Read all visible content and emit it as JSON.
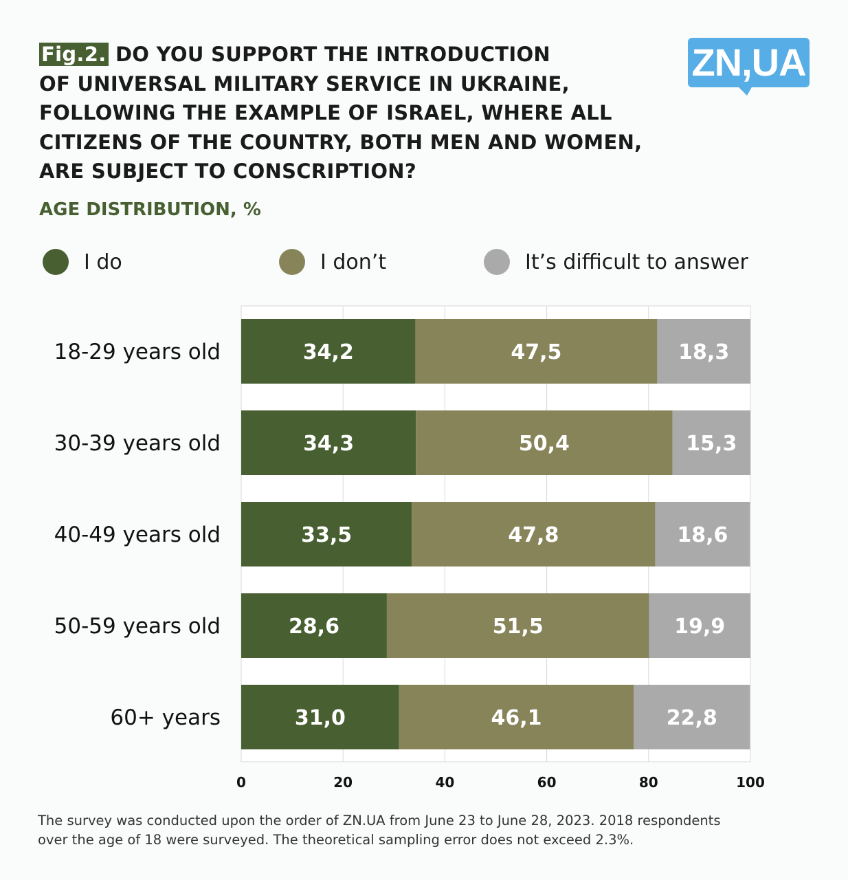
{
  "figure_label": "Fig.2.",
  "logo": "ZN,UA",
  "footnote_lines": [
    "The survey was conducted upon the order of ZN.UA from June 23 to June 28, 2023.  2018 respondents",
    "over the age of 18 were surveyed.  The theoretical sampling error does not exceed 2.3%."
  ],
  "chart_data": {
    "type": "bar",
    "orientation": "horizontal-stacked",
    "title_lines": [
      "DO YOU SUPPORT THE INTRODUCTION",
      "OF UNIVERSAL MILITARY SERVICE IN UKRAINE,",
      "FOLLOWING THE EXAMPLE OF ISRAEL, WHERE ALL",
      "CITIZENS OF THE COUNTRY, BOTH MEN AND WOMEN,",
      "ARE SUBJECT TO CONSCRIPTION?"
    ],
    "subtitle": "AGE DISTRIBUTION, %",
    "categories": [
      "18-29 years old",
      "30-39 years old",
      "40-49 years old",
      "50-59 years old",
      "60+ years"
    ],
    "series": [
      {
        "name": "I do",
        "color": "#475f31",
        "values": [
          34.2,
          34.3,
          33.5,
          28.6,
          31.0
        ],
        "labels": [
          "34,2",
          "34,3",
          "33,5",
          "28,6",
          "31,0"
        ]
      },
      {
        "name": "I don’t",
        "color": "#87845a",
        "values": [
          47.5,
          50.4,
          47.8,
          51.5,
          46.1
        ],
        "labels": [
          "47,5",
          "50,4",
          "47,8",
          "51,5",
          "46,1"
        ]
      },
      {
        "name": "It’s difficult to answer",
        "color": "#aaaaaa",
        "values": [
          18.3,
          15.3,
          18.6,
          19.9,
          22.8
        ],
        "labels": [
          "18,3",
          "15,3",
          "18,6",
          "19,9",
          "22,8"
        ]
      }
    ],
    "xlim": [
      0,
      100
    ],
    "xticks": [
      "0",
      "20",
      "40",
      "60",
      "80",
      "100"
    ],
    "grid": true,
    "legend_position": "top"
  }
}
